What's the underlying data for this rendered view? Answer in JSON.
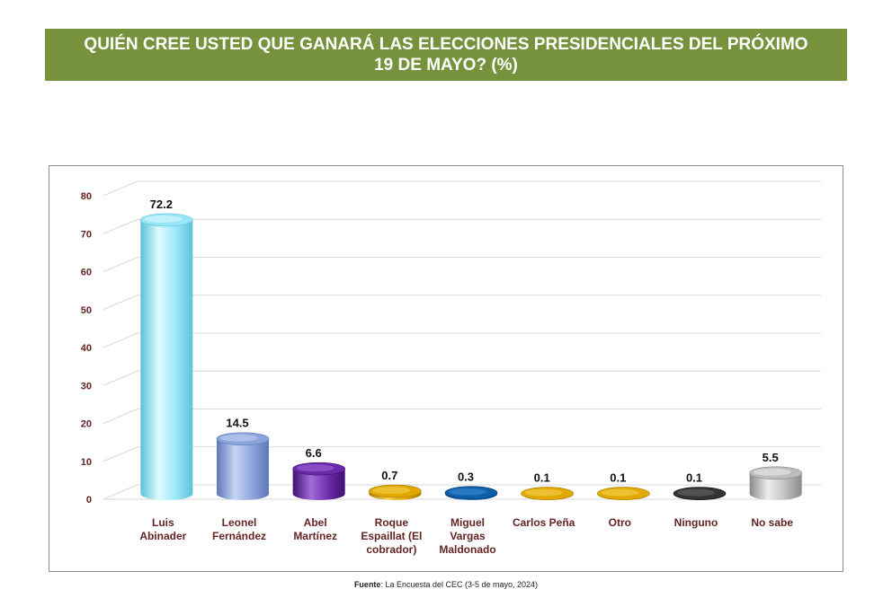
{
  "title": "QUIÉN CREE USTED QUE GANARÁ LAS ELECCIONES PRESIDENCIALES DEL PRÓXIMO 19 DE MAYO? (%)",
  "source": {
    "label": "Fuente",
    "text": ": La Encuesta del CEC (3-5 de mayo, 2024)"
  },
  "chart_data": {
    "type": "bar",
    "title": "QUIÉN CREE USTED QUE GANARÁ LAS ELECCIONES PRESIDENCIALES DEL PRÓXIMO 19 DE MAYO? (%)",
    "xlabel": "",
    "ylabel": "",
    "ylim": [
      0,
      80
    ],
    "yticks": [
      0,
      10,
      20,
      30,
      40,
      50,
      60,
      70,
      80
    ],
    "grid": true,
    "legend": "none",
    "categories": [
      [
        "Luis",
        "Abinader"
      ],
      [
        "Leonel",
        "Fernández"
      ],
      [
        "Abel",
        "Martínez"
      ],
      [
        "Roque",
        "Espaillat (El",
        "cobrador)"
      ],
      [
        "Miguel",
        "Vargas",
        "Maldonado"
      ],
      [
        "Carlos Peña"
      ],
      [
        "Otro"
      ],
      [
        "Ninguno"
      ],
      [
        "No sabe"
      ]
    ],
    "values": [
      72.2,
      14.5,
      6.6,
      0.7,
      0.3,
      0.1,
      0.1,
      0.1,
      5.5
    ],
    "data_labels": [
      "72.2",
      "14.5",
      "6.6",
      "0.7",
      "0.3",
      "0.1",
      "0.1",
      "0.1",
      "5.5"
    ],
    "colors": [
      {
        "light": "#dffaff",
        "mid": "#97e6f6",
        "dark": "#5cc2d8"
      },
      {
        "light": "#c6d4f4",
        "mid": "#8ca4dc",
        "dark": "#5e78b8"
      },
      {
        "light": "#a36bd8",
        "mid": "#6a2aa8",
        "dark": "#3f1173"
      },
      {
        "light": "#f5d35a",
        "mid": "#e0a800",
        "dark": "#a87a00"
      },
      {
        "light": "#3d8fd3",
        "mid": "#0f5fa8",
        "dark": "#073d72"
      },
      {
        "light": "#f5d35a",
        "mid": "#e0a800",
        "dark": "#a87a00"
      },
      {
        "light": "#f5d35a",
        "mid": "#e0a800",
        "dark": "#a87a00"
      },
      {
        "light": "#6b6b6b",
        "mid": "#333333",
        "dark": "#111111"
      },
      {
        "light": "#eeeeee",
        "mid": "#bdbdbd",
        "dark": "#8a8a8a"
      }
    ],
    "tick_label_color": "#632423",
    "category_label_color": "#632423"
  }
}
